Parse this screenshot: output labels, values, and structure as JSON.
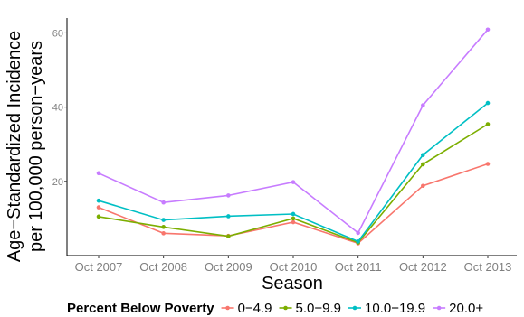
{
  "chart_data": {
    "type": "line",
    "title": "",
    "xlabel": "Season",
    "ylabel_line1": "Age−Standardized Incidence",
    "ylabel_line2": "per 100,000 person−years",
    "categories": [
      "Oct 2007",
      "Oct 2008",
      "Oct 2009",
      "Oct 2010",
      "Oct 2011",
      "Oct 2012",
      "Oct 2013"
    ],
    "y_ticks": [
      20,
      40,
      60
    ],
    "y_tick_labels": [
      "20",
      "40",
      "60"
    ],
    "ylim": [
      0,
      64
    ],
    "grid": false,
    "legend": {
      "title": "Percent Below Poverty",
      "position": "bottom"
    },
    "series": [
      {
        "name": "0−4.9",
        "color": "#F8766D",
        "values": [
          13.0,
          6.0,
          5.3,
          9.0,
          3.3,
          18.8,
          24.7
        ]
      },
      {
        "name": "5.0−9.9",
        "color": "#7CAE00",
        "values": [
          10.5,
          7.7,
          5.2,
          10.0,
          3.5,
          24.6,
          35.4
        ]
      },
      {
        "name": "10.0−19.9",
        "color": "#00BFC4",
        "values": [
          14.8,
          9.6,
          10.6,
          11.2,
          3.8,
          27.1,
          41.1
        ]
      },
      {
        "name": "20.0+",
        "color": "#C77CFF",
        "values": [
          22.2,
          14.3,
          16.2,
          19.8,
          6.1,
          40.5,
          60.9
        ]
      }
    ]
  }
}
